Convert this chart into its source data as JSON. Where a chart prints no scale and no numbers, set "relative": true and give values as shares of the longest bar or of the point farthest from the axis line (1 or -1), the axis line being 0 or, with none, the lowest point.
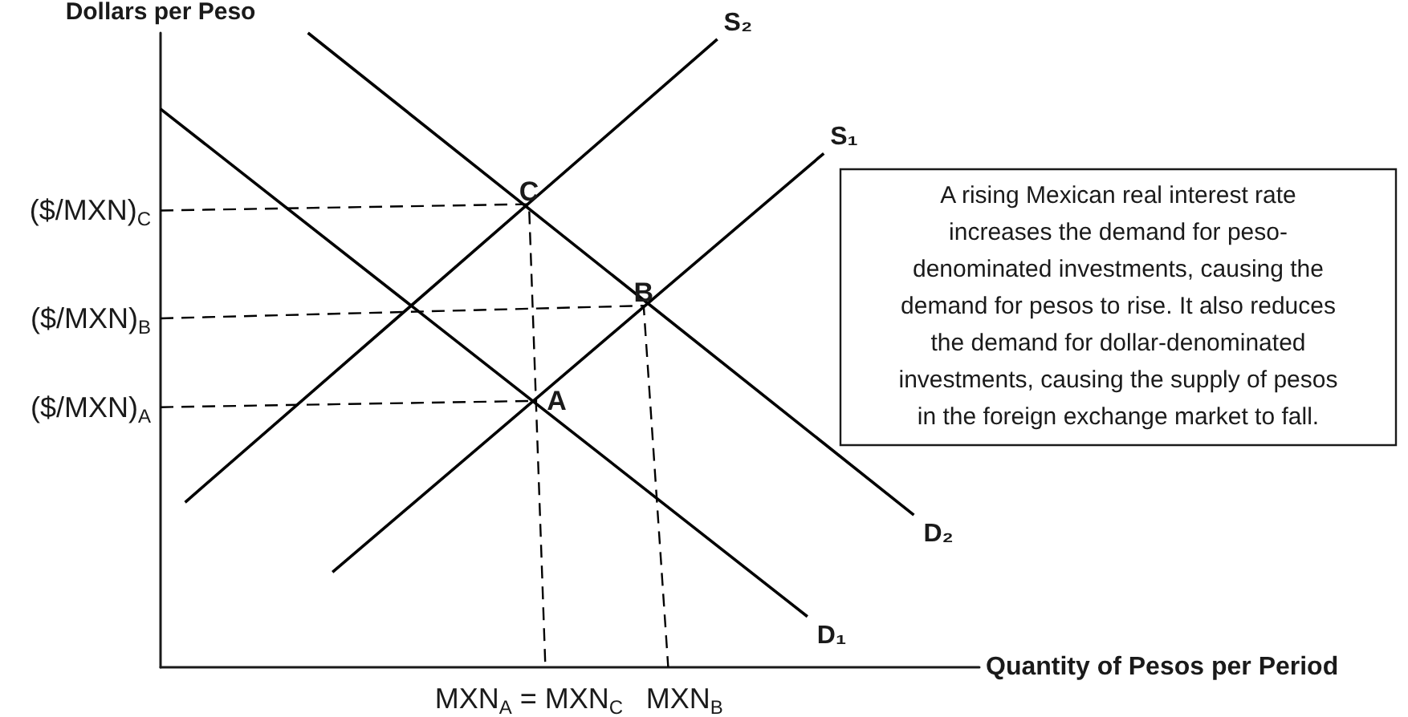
{
  "chart_data": {
    "type": "line",
    "relative": true,
    "xlabel": "Quantity of Pesos per Period",
    "ylabel": "Dollars per Peso",
    "categories": [
      null,
      null,
      null,
      null,
      null,
      null,
      null,
      null,
      null,
      null,
      null,
      null,
      null,
      null,
      null,
      null,
      null,
      null,
      null,
      null,
      null,
      null,
      null,
      null,
      null,
      null,
      null,
      null,
      null,
      null,
      null,
      null,
      null,
      null,
      null,
      null,
      null,
      null,
      null,
      null,
      null,
      null,
      null,
      null,
      null,
      "MXN$_{A}$ = MXN$_{C}$",
      null,
      null,
      null,
      null,
      null,
      null,
      null,
      null,
      null,
      null,
      null,
      null,
      null,
      null,
      null,
      null,
      null,
      null,
      "MXN$_{B}$",
      null,
      null,
      null,
      null,
      null,
      null,
      null,
      null,
      null,
      null,
      null,
      null,
      null,
      null,
      null,
      null,
      null,
      null,
      null,
      null,
      null,
      null,
      null,
      null,
      null,
      null,
      null,
      null,
      null,
      null,
      null,
      null,
      null,
      null,
      null,
      null
    ],
    "series": [
      {
        "name": "S₂",
        "color": "#000000",
        "values": [
          null,
          null,
          null,
          0.26,
          null,
          null,
          null,
          null,
          null,
          null,
          null,
          null,
          null,
          null,
          null,
          null,
          null,
          null,
          null,
          null,
          null,
          null,
          null,
          null,
          null,
          null,
          null,
          null,
          null,
          null,
          null,
          null,
          null,
          null,
          null,
          null,
          null,
          null,
          null,
          null,
          null,
          null,
          null,
          null,
          null,
          null,
          null,
          null,
          null,
          null,
          null,
          null,
          null,
          null,
          null,
          null,
          null,
          null,
          null,
          null,
          null,
          null,
          null,
          null,
          null,
          null,
          null,
          null,
          0.99,
          null,
          null,
          null,
          null,
          null,
          null,
          null,
          null,
          null,
          null,
          null,
          null,
          null,
          null,
          null,
          null,
          null,
          null,
          null,
          null,
          null,
          null,
          null,
          null,
          null,
          null,
          null,
          null,
          null,
          null,
          null,
          null
        ]
      },
      {
        "name": "S₁",
        "color": "#000000",
        "values": [
          null,
          null,
          null,
          null,
          null,
          null,
          null,
          null,
          null,
          null,
          null,
          null,
          null,
          null,
          null,
          null,
          null,
          null,
          null,
          null,
          null,
          0.15,
          null,
          null,
          null,
          null,
          null,
          null,
          null,
          null,
          null,
          null,
          null,
          null,
          null,
          null,
          null,
          null,
          null,
          null,
          null,
          null,
          null,
          null,
          null,
          null,
          null,
          null,
          null,
          null,
          null,
          null,
          null,
          null,
          null,
          null,
          null,
          null,
          null,
          null,
          null,
          null,
          null,
          null,
          null,
          null,
          null,
          null,
          null,
          null,
          null,
          null,
          null,
          null,
          null,
          null,
          null,
          null,
          null,
          null,
          null,
          0.81,
          null,
          null,
          null,
          null,
          null,
          null,
          null,
          null,
          null,
          null,
          null,
          null,
          null,
          null,
          null,
          null,
          null,
          null,
          null
        ]
      },
      {
        "name": "D₂",
        "color": "#000000",
        "values": [
          null,
          null,
          null,
          null,
          null,
          null,
          null,
          null,
          null,
          null,
          null,
          null,
          null,
          null,
          null,
          null,
          null,
          null,
          1,
          null,
          null,
          null,
          null,
          null,
          null,
          null,
          null,
          null,
          null,
          null,
          null,
          null,
          null,
          null,
          null,
          null,
          null,
          null,
          null,
          null,
          null,
          null,
          null,
          null,
          null,
          null,
          null,
          null,
          null,
          null,
          null,
          null,
          null,
          null,
          null,
          null,
          null,
          null,
          null,
          null,
          null,
          null,
          null,
          null,
          null,
          null,
          null,
          null,
          null,
          null,
          null,
          null,
          null,
          null,
          null,
          null,
          null,
          null,
          null,
          null,
          null,
          null,
          null,
          null,
          null,
          null,
          null,
          null,
          null,
          null,
          null,
          null,
          0.24,
          null,
          null,
          null,
          null,
          null,
          null,
          null,
          null
        ]
      },
      {
        "name": "D₁",
        "color": "#000000",
        "values": [
          0.88,
          null,
          null,
          null,
          null,
          null,
          null,
          null,
          null,
          null,
          null,
          null,
          null,
          null,
          null,
          null,
          null,
          null,
          null,
          null,
          null,
          null,
          null,
          null,
          null,
          null,
          null,
          null,
          null,
          null,
          null,
          null,
          null,
          null,
          null,
          null,
          null,
          null,
          null,
          null,
          null,
          null,
          null,
          null,
          null,
          null,
          null,
          null,
          null,
          null,
          null,
          null,
          null,
          null,
          null,
          null,
          null,
          null,
          null,
          null,
          null,
          null,
          null,
          null,
          null,
          null,
          null,
          null,
          null,
          null,
          null,
          null,
          null,
          null,
          null,
          null,
          null,
          null,
          null,
          0.08,
          null,
          null,
          null,
          null,
          null,
          null,
          null,
          null,
          null,
          null,
          null,
          null,
          null,
          null,
          null,
          null,
          null,
          null,
          null,
          null,
          null
        ]
      },
      {
        "name": "C",
        "color": "#000000",
        "line_style": "dashed",
        "values": [
          0.72,
          null,
          null,
          null,
          null,
          null,
          null,
          null,
          null,
          null,
          null,
          null,
          null,
          null,
          null,
          null,
          null,
          null,
          null,
          null,
          null,
          null,
          null,
          null,
          null,
          null,
          null,
          null,
          null,
          null,
          null,
          null,
          null,
          null,
          null,
          null,
          null,
          null,
          null,
          null,
          null,
          null,
          null,
          null,
          null,
          0.73,
          null,
          0,
          null,
          null,
          null,
          null,
          null,
          null,
          null,
          null,
          null,
          null,
          null,
          null,
          null,
          null,
          null,
          null,
          null,
          null,
          null,
          null,
          null,
          null,
          null,
          null,
          null,
          null,
          null,
          null,
          null,
          null,
          null,
          null,
          null,
          null,
          null,
          null,
          null,
          null,
          null,
          null,
          null,
          null,
          null,
          null,
          null,
          null,
          null,
          null,
          null,
          null,
          null,
          null,
          null
        ]
      },
      {
        "name": "B",
        "color": "#000000",
        "line_style": "dashed",
        "values": [
          0.55,
          null,
          null,
          null,
          null,
          null,
          null,
          null,
          null,
          null,
          null,
          null,
          null,
          null,
          null,
          null,
          null,
          null,
          null,
          null,
          null,
          null,
          null,
          null,
          null,
          null,
          null,
          null,
          null,
          null,
          null,
          null,
          null,
          null,
          null,
          null,
          null,
          null,
          null,
          null,
          null,
          null,
          null,
          null,
          null,
          null,
          null,
          null,
          null,
          null,
          null,
          null,
          null,
          null,
          null,
          null,
          null,
          null,
          null,
          0.57,
          null,
          null,
          0,
          null,
          null,
          null,
          null,
          null,
          null,
          null,
          null,
          null,
          null,
          null,
          null,
          null,
          null,
          null,
          null,
          null,
          null,
          null,
          null,
          null,
          null,
          null,
          null,
          null,
          null,
          null,
          null,
          null,
          null,
          null,
          null,
          null,
          null,
          null,
          null,
          null,
          null
        ]
      },
      {
        "name": "A",
        "color": "#000000",
        "line_style": "dashed",
        "values": [
          0.41,
          null,
          null,
          null,
          null,
          null,
          null,
          null,
          null,
          null,
          null,
          null,
          null,
          null,
          null,
          null,
          null,
          null,
          null,
          null,
          null,
          null,
          null,
          null,
          null,
          null,
          null,
          null,
          null,
          null,
          null,
          null,
          null,
          null,
          null,
          null,
          null,
          null,
          null,
          null,
          null,
          null,
          null,
          null,
          null,
          null,
          0.42,
          null,
          null,
          null,
          null,
          null,
          null,
          null,
          null,
          null,
          null,
          null,
          null,
          null,
          null,
          null,
          null,
          null,
          null,
          null,
          null,
          null,
          null,
          null,
          null,
          null,
          null,
          null,
          null,
          null,
          null,
          null,
          null,
          null,
          null,
          null,
          null,
          null,
          null,
          null,
          null,
          null,
          null,
          null,
          null,
          null,
          null,
          null,
          null,
          null,
          null,
          null,
          null,
          null,
          null
        ]
      }
    ],
    "annotations": [
      "($/MXN)$_{C}$",
      "($/MXN)$_{B}$",
      "($/MXN)$_{A}$",
      "A rising Mexican real interest rate\nincreases the demand for peso-\ndenominated investments, causing the\ndemand for pesos to rise. It also reduces\nthe demand for dollar-denominated\ninvestments, causing the supply of pesos\nin the foreign exchange market to fall."
    ]
  }
}
